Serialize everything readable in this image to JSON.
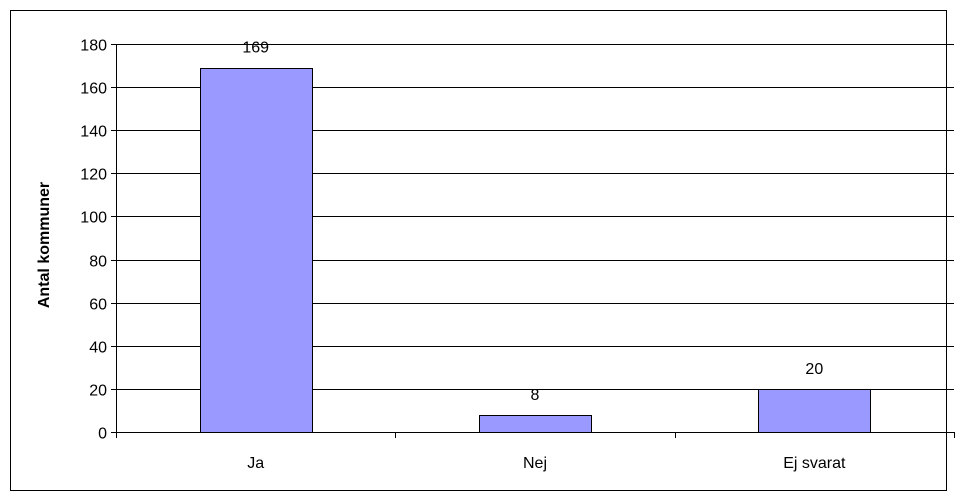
{
  "chart_data": {
    "type": "bar",
    "title": "",
    "xlabel": "",
    "ylabel": "Antal kommuner",
    "categories": [
      "Ja",
      "Nej",
      "Ej svarat"
    ],
    "values": [
      169,
      8,
      20
    ],
    "data_labels": [
      "169",
      "8",
      "20"
    ],
    "ylim": [
      0,
      180
    ],
    "yticks": [
      0,
      20,
      40,
      60,
      80,
      100,
      120,
      140,
      160,
      180
    ],
    "grid": true,
    "legend": "none",
    "colors": {
      "bar_fill": "#9999ff",
      "bar_stroke": "#000000",
      "grid": "#000000",
      "axis": "#000000",
      "border": "#000000",
      "background": "#ffffff"
    }
  }
}
